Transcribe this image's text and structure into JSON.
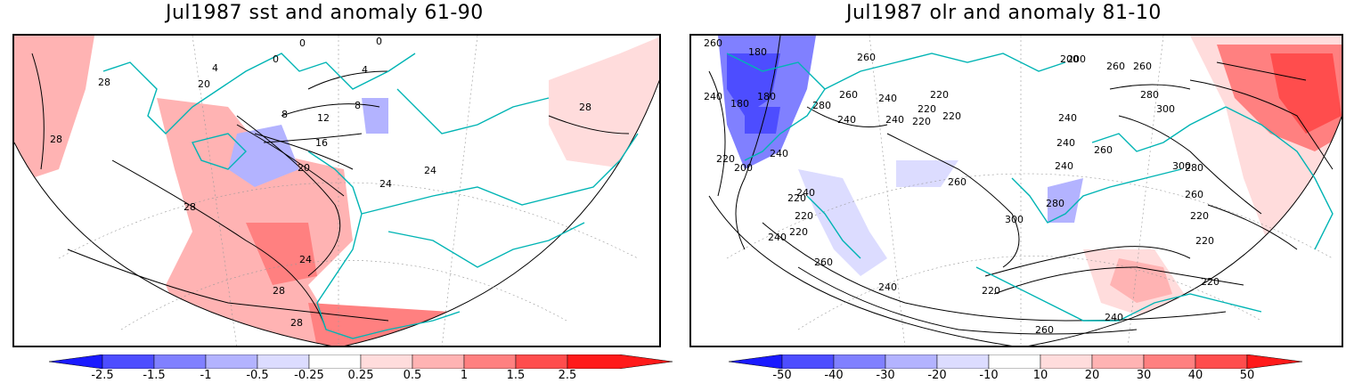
{
  "left_panel": {
    "title": "Jul1987 sst and anomaly 61-90",
    "colorbar_labels": [
      "-2.5",
      "-1.5",
      "-1",
      "-0.5",
      "-0.25",
      "0.25",
      "0.5",
      "1",
      "1.5",
      "2.5"
    ],
    "colorbar_colors": [
      "#1a1aff",
      "#4d4dff",
      "#8080ff",
      "#b3b3ff",
      "#dcdcff",
      "#ffffff",
      "#ffdcdc",
      "#ffb3b3",
      "#ff8080",
      "#ff4d4d",
      "#ff1a1a"
    ],
    "contour_labels": [
      "28",
      "28",
      "28",
      "28",
      "28",
      "28",
      "24",
      "24",
      "24",
      "20",
      "20",
      "16",
      "12",
      "8",
      "8",
      "4",
      "4",
      "0",
      "0",
      "0"
    ]
  },
  "right_panel": {
    "title": "Jul1987 olr and anomaly 81-10",
    "colorbar_labels": [
      "-50",
      "-40",
      "-30",
      "-20",
      "-10",
      "10",
      "20",
      "30",
      "40",
      "50"
    ],
    "colorbar_colors": [
      "#1a1aff",
      "#4d4dff",
      "#8080ff",
      "#b3b3ff",
      "#dcdcff",
      "#ffffff",
      "#ffdcdc",
      "#ffb3b3",
      "#ff8080",
      "#ff4d4d",
      "#ff1a1a"
    ],
    "contour_labels": [
      "260",
      "180",
      "180",
      "180",
      "240",
      "220",
      "200",
      "240",
      "220",
      "220",
      "240",
      "260",
      "240",
      "220",
      "200",
      "220",
      "220",
      "240",
      "260",
      "280",
      "300",
      "260",
      "240",
      "220",
      "240",
      "200",
      "240",
      "260",
      "280",
      "300",
      "260",
      "240",
      "260",
      "220",
      "280",
      "300",
      "300",
      "280",
      "260",
      "240",
      "220",
      "220",
      "260",
      "240",
      "220",
      "240",
      "260",
      "220"
    ]
  }
}
